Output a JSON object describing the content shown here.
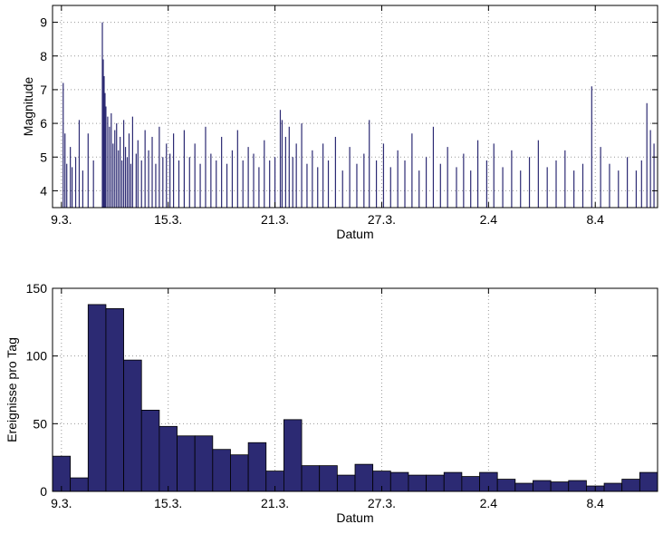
{
  "chart_data": [
    {
      "type": "stem",
      "ylabel": "Magnitude",
      "xlabel": "Datum",
      "color": "#2c2a73",
      "grid": true,
      "xlim": [
        -0.5,
        33.5
      ],
      "ylim": [
        3.5,
        9.5
      ],
      "xticks": [
        {
          "value": 0,
          "label": "9.3."
        },
        {
          "value": 6,
          "label": "15.3."
        },
        {
          "value": 12,
          "label": "21.3."
        },
        {
          "value": 18,
          "label": "27.3."
        },
        {
          "value": 24,
          "label": "2.4"
        },
        {
          "value": 30,
          "label": "8.4"
        }
      ],
      "yticks": [
        4,
        5,
        6,
        7,
        8,
        9
      ],
      "x": [
        0.1,
        0.2,
        0.3,
        0.5,
        0.6,
        0.8,
        1.0,
        1.2,
        1.5,
        1.8,
        2.3,
        2.35,
        2.4,
        2.45,
        2.5,
        2.6,
        2.7,
        2.8,
        2.9,
        3.0,
        3.1,
        3.2,
        3.3,
        3.4,
        3.5,
        3.6,
        3.7,
        3.8,
        3.9,
        4.0,
        4.2,
        4.3,
        4.5,
        4.7,
        4.9,
        5.1,
        5.3,
        5.5,
        5.7,
        5.9,
        6.1,
        6.3,
        6.6,
        6.9,
        7.2,
        7.5,
        7.8,
        8.1,
        8.4,
        8.7,
        9.0,
        9.3,
        9.6,
        9.9,
        10.2,
        10.5,
        10.8,
        11.1,
        11.4,
        11.7,
        12.0,
        12.3,
        12.4,
        12.6,
        12.8,
        13.0,
        13.2,
        13.5,
        13.8,
        14.1,
        14.4,
        14.7,
        15.0,
        15.4,
        15.8,
        16.2,
        16.6,
        17.0,
        17.3,
        17.7,
        18.1,
        18.5,
        18.9,
        19.3,
        19.7,
        20.1,
        20.5,
        20.9,
        21.3,
        21.7,
        22.2,
        22.6,
        23.0,
        23.4,
        23.9,
        24.3,
        24.8,
        25.3,
        25.8,
        26.3,
        26.8,
        27.3,
        27.8,
        28.3,
        28.8,
        29.3,
        29.8,
        30.3,
        30.8,
        31.3,
        31.8,
        32.3,
        32.6,
        32.9,
        33.1,
        33.3
      ],
      "values": [
        7.2,
        5.7,
        4.8,
        5.3,
        4.7,
        5.0,
        6.1,
        4.6,
        5.7,
        4.9,
        9.0,
        7.9,
        7.4,
        6.9,
        6.5,
        6.2,
        5.9,
        6.3,
        5.4,
        5.8,
        6.0,
        5.2,
        5.6,
        4.9,
        6.1,
        5.3,
        5.0,
        5.7,
        4.8,
        6.2,
        5.1,
        5.5,
        4.9,
        5.8,
        5.2,
        5.6,
        4.8,
        5.9,
        5.0,
        5.4,
        5.1,
        5.7,
        4.9,
        5.8,
        5.0,
        5.4,
        4.8,
        5.9,
        5.1,
        4.9,
        5.6,
        4.8,
        5.2,
        5.8,
        4.9,
        5.3,
        5.1,
        4.7,
        5.5,
        4.9,
        5.0,
        6.4,
        6.1,
        5.6,
        5.9,
        5.0,
        5.4,
        6.0,
        4.8,
        5.2,
        4.7,
        5.4,
        4.9,
        5.6,
        4.6,
        5.3,
        4.8,
        5.1,
        6.1,
        4.9,
        5.4,
        4.7,
        5.2,
        4.9,
        5.7,
        4.6,
        5.0,
        5.9,
        4.8,
        5.3,
        4.7,
        5.1,
        4.6,
        5.5,
        4.9,
        5.4,
        4.7,
        5.2,
        4.6,
        5.0,
        5.5,
        4.7,
        4.9,
        5.2,
        4.6,
        4.8,
        7.1,
        5.3,
        4.8,
        4.6,
        5.0,
        4.6,
        4.9,
        6.6,
        5.8,
        5.4
      ]
    },
    {
      "type": "histogram",
      "ylabel": "Ereignisse pro Tag",
      "xlabel": "Datum",
      "color": "#2c2a73",
      "grid": true,
      "xlim": [
        -0.5,
        33.5
      ],
      "ylim": [
        0,
        150
      ],
      "xticks": [
        {
          "value": 0,
          "label": "9.3."
        },
        {
          "value": 6,
          "label": "15.3."
        },
        {
          "value": 12,
          "label": "21.3."
        },
        {
          "value": 18,
          "label": "27.3."
        },
        {
          "value": 24,
          "label": "2.4"
        },
        {
          "value": 30,
          "label": "8.4"
        }
      ],
      "yticks": [
        0,
        50,
        100,
        150
      ],
      "bins": [
        -0.5,
        0.5,
        1.5,
        2.5,
        3.5,
        4.5,
        5.5,
        6.5,
        7.5,
        8.5,
        9.5,
        10.5,
        11.5,
        12.5,
        13.5,
        14.5,
        15.5,
        16.5,
        17.5,
        18.5,
        19.5,
        20.5,
        21.5,
        22.5,
        23.5,
        24.5,
        25.5,
        26.5,
        27.5,
        28.5,
        29.5,
        30.5,
        31.5,
        32.5,
        33.5
      ],
      "values": [
        26,
        10,
        138,
        135,
        97,
        60,
        48,
        41,
        41,
        31,
        27,
        36,
        15,
        53,
        19,
        19,
        12,
        20,
        15,
        14,
        12,
        12,
        14,
        11,
        14,
        9,
        6,
        8,
        7,
        8,
        4,
        6,
        9,
        14
      ]
    }
  ]
}
